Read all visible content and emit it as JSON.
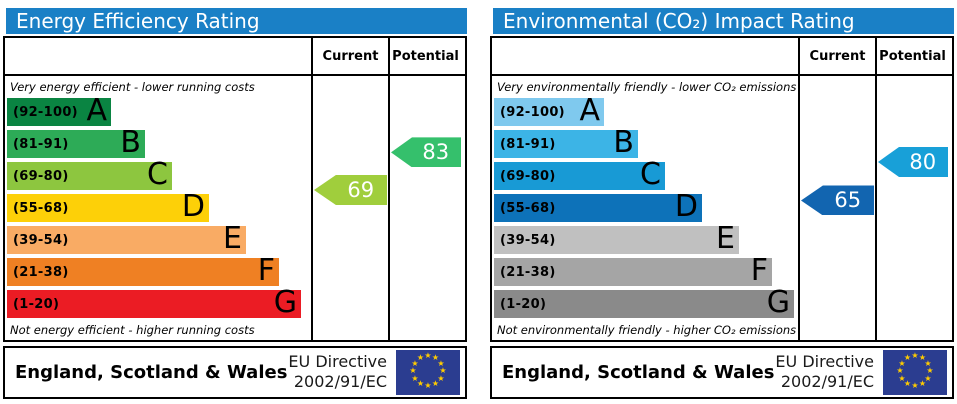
{
  "eu_flag": {
    "background": "#2b3d90",
    "star_color": "#ffcc00",
    "star_count": 12
  },
  "panels": [
    {
      "id": "energy-efficiency",
      "title": "Energy Efficiency Rating",
      "title_bg": "#1a80c6",
      "columns": {
        "current": "Current",
        "potential": "Potential"
      },
      "top_note": "Very energy efficient - lower running costs",
      "bottom_note": "Not energy efficient - higher running costs",
      "bands": [
        {
          "label": "(92-100)",
          "letter": "A",
          "min": 92,
          "max": 100,
          "color": "#0a8442",
          "width_pct": 34
        },
        {
          "label": "(81-91)",
          "letter": "B",
          "min": 81,
          "max": 91,
          "color": "#2dab57",
          "width_pct": 45
        },
        {
          "label": "(69-80)",
          "letter": "C",
          "min": 69,
          "max": 80,
          "color": "#8dc63f",
          "width_pct": 54
        },
        {
          "label": "(55-68)",
          "letter": "D",
          "min": 55,
          "max": 68,
          "color": "#fdd008",
          "width_pct": 66
        },
        {
          "label": "(39-54)",
          "letter": "E",
          "min": 39,
          "max": 54,
          "color": "#f9ab64",
          "width_pct": 78
        },
        {
          "label": "(21-38)",
          "letter": "F",
          "min": 21,
          "max": 38,
          "color": "#ef8023",
          "width_pct": 89
        },
        {
          "label": "(1-20)",
          "letter": "G",
          "min": 1,
          "max": 20,
          "color": "#eb1c24",
          "width_pct": 96
        }
      ],
      "current": {
        "value": 69,
        "color": "#a0ce3c"
      },
      "potential": {
        "value": 83,
        "color": "#35c06c"
      },
      "footer": {
        "region": "England, Scotland & Wales",
        "directive": [
          "EU Directive",
          "2002/91/EC"
        ]
      }
    },
    {
      "id": "environmental-co2",
      "title": "Environmental (CO₂) Impact Rating",
      "title_bg": "#1a80c6",
      "columns": {
        "current": "Current",
        "potential": "Potential"
      },
      "top_note": "Very environmentally friendly - lower CO₂ emissions",
      "bottom_note": "Not environmentally friendly - higher CO₂ emissions",
      "bands": [
        {
          "label": "(92-100)",
          "letter": "A",
          "min": 92,
          "max": 100,
          "color": "#7fc9ee",
          "width_pct": 36
        },
        {
          "label": "(81-91)",
          "letter": "B",
          "min": 81,
          "max": 91,
          "color": "#3cb4e6",
          "width_pct": 47
        },
        {
          "label": "(69-80)",
          "letter": "C",
          "min": 69,
          "max": 80,
          "color": "#189ad5",
          "width_pct": 56
        },
        {
          "label": "(55-68)",
          "letter": "D",
          "min": 55,
          "max": 68,
          "color": "#0d72b9",
          "width_pct": 68
        },
        {
          "label": "(39-54)",
          "letter": "E",
          "min": 39,
          "max": 54,
          "color": "#c0c0c0",
          "width_pct": 80
        },
        {
          "label": "(21-38)",
          "letter": "F",
          "min": 21,
          "max": 38,
          "color": "#a5a5a5",
          "width_pct": 91
        },
        {
          "label": "(1-20)",
          "letter": "G",
          "min": 1,
          "max": 20,
          "color": "#8a8a8a",
          "width_pct": 98
        }
      ],
      "current": {
        "value": 65,
        "color": "#1265b0"
      },
      "potential": {
        "value": 80,
        "color": "#18a0d8"
      },
      "footer": {
        "region": "England, Scotland & Wales",
        "directive": [
          "EU Directive",
          "2002/91/EC"
        ]
      }
    }
  ],
  "chart_data": [
    {
      "type": "bar",
      "orientation": "horizontal",
      "title": "Energy Efficiency Rating",
      "categories": [
        "A (92-100)",
        "B (81-91)",
        "C (69-80)",
        "D (55-68)",
        "E (39-54)",
        "F (21-38)",
        "G (1-20)"
      ],
      "values": [
        34,
        45,
        54,
        66,
        78,
        89,
        96
      ],
      "bar_colors": [
        "#0a8442",
        "#2dab57",
        "#8dc63f",
        "#fdd008",
        "#f9ab64",
        "#ef8023",
        "#eb1c24"
      ],
      "markers": {
        "current": 69,
        "potential": 83
      },
      "marker_colors": {
        "current": "#a0ce3c",
        "potential": "#35c06c"
      },
      "annotations": [
        "Very energy efficient - lower running costs",
        "Not energy efficient - higher running costs"
      ],
      "footer": "England, Scotland & Wales | EU Directive 2002/91/EC",
      "value_range": [
        1,
        100
      ],
      "grid": false,
      "legend": false
    },
    {
      "type": "bar",
      "orientation": "horizontal",
      "title": "Environmental (CO₂) Impact Rating",
      "categories": [
        "A (92-100)",
        "B (81-91)",
        "C (69-80)",
        "D (55-68)",
        "E (39-54)",
        "F (21-38)",
        "G (1-20)"
      ],
      "values": [
        36,
        47,
        56,
        68,
        80,
        91,
        98
      ],
      "bar_colors": [
        "#7fc9ee",
        "#3cb4e6",
        "#189ad5",
        "#0d72b9",
        "#c0c0c0",
        "#a5a5a5",
        "#8a8a8a"
      ],
      "markers": {
        "current": 65,
        "potential": 80
      },
      "marker_colors": {
        "current": "#1265b0",
        "potential": "#18a0d8"
      },
      "annotations": [
        "Very environmentally friendly - lower CO₂ emissions",
        "Not environmentally friendly - higher CO₂ emissions"
      ],
      "footer": "England, Scotland & Wales | EU Directive 2002/91/EC",
      "value_range": [
        1,
        100
      ],
      "grid": false,
      "legend": false
    }
  ]
}
